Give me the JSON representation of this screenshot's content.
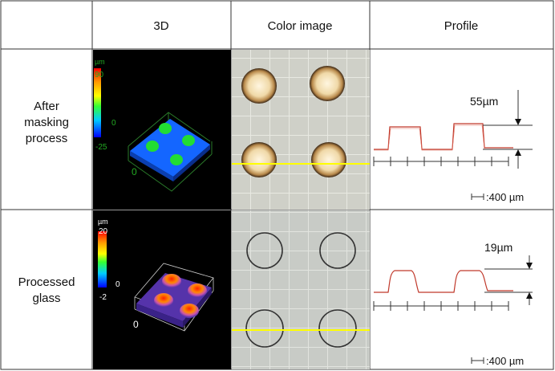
{
  "headers": {
    "col_3d": "3D",
    "col_color": "Color image",
    "col_profile": "Profile"
  },
  "rows": [
    {
      "label_lines": [
        "After",
        "masking",
        "process"
      ],
      "scale": {
        "unit": "µm",
        "max": "90",
        "mid": "0",
        "min": "-25",
        "axis_zero": "0"
      },
      "profile_height": "55µm",
      "scale_bar": ":400 µm"
    },
    {
      "label_lines": [
        "Processed",
        "glass"
      ],
      "scale": {
        "unit": "µm",
        "max": "20",
        "mid": "0",
        "min": "-2",
        "axis_zero": "0"
      },
      "profile_height": "19µm",
      "scale_bar": ":400 µm"
    }
  ],
  "colors": {
    "grid_line": "#333333",
    "profile_line": "#c0392b",
    "section_line": "#ffff00",
    "scale_label_row1": "#22aa22",
    "scale_label_row2": "#ffffff"
  }
}
